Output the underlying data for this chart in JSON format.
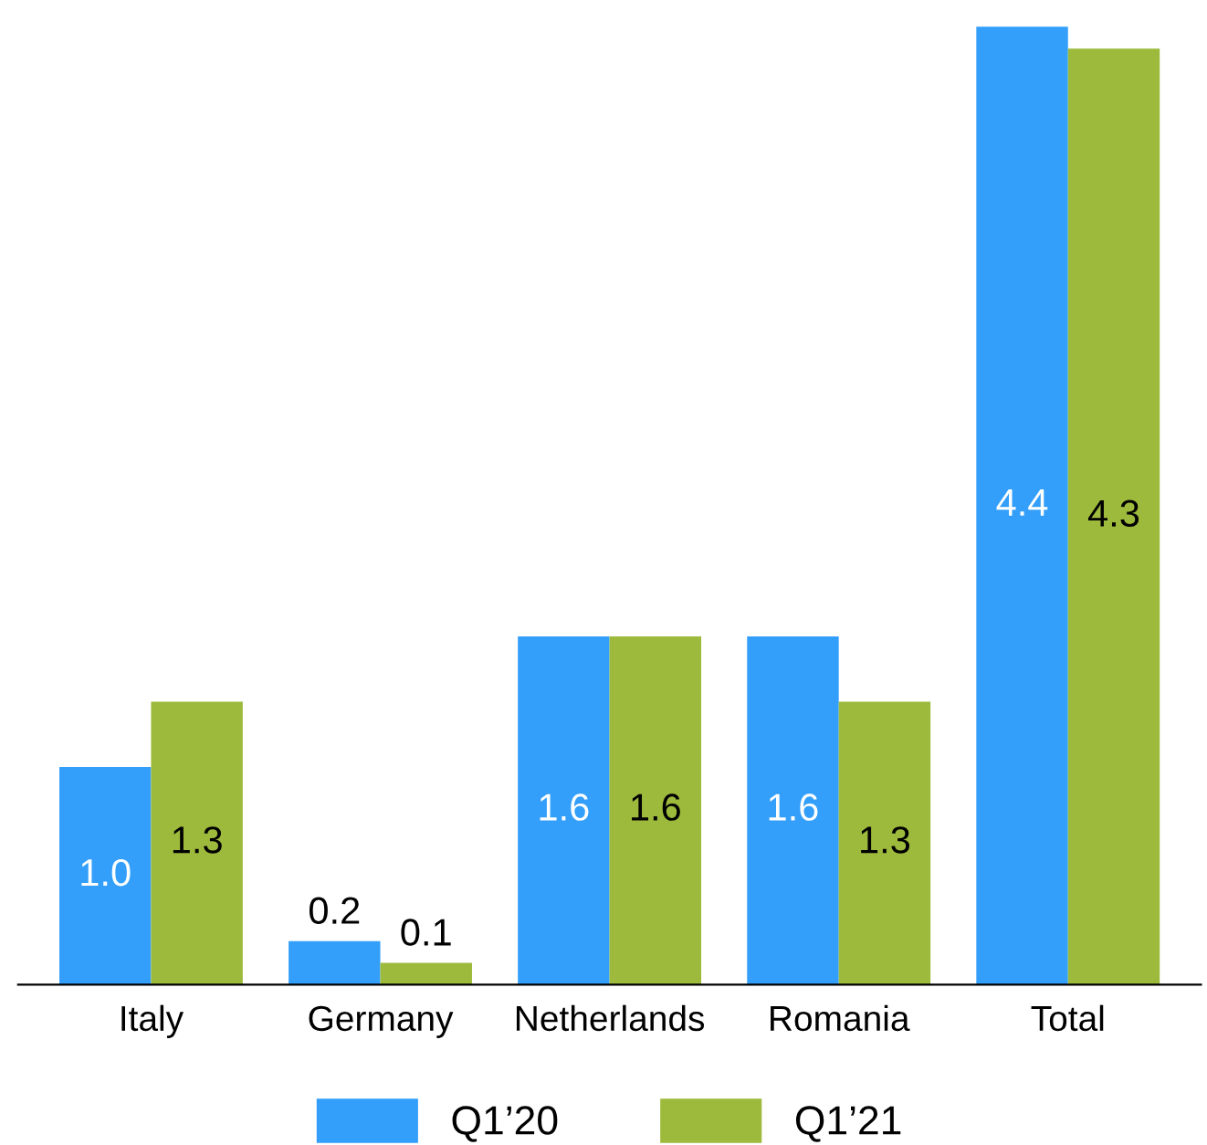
{
  "chart_data": {
    "type": "bar",
    "categories": [
      "Italy",
      "Germany",
      "Netherlands",
      "Romania",
      "Total"
    ],
    "series": [
      {
        "name": "Q1’20",
        "color": "#339ffa",
        "values": [
          1.0,
          0.2,
          1.6,
          1.6,
          4.4
        ],
        "value_labels": [
          "1.0",
          "0.2",
          "1.6",
          "1.6",
          "4.4"
        ]
      },
      {
        "name": "Q1’21",
        "color": "#9dba3c",
        "values": [
          1.3,
          0.1,
          1.6,
          1.3,
          4.3
        ],
        "value_labels": [
          "1.3",
          "0.1",
          "1.6",
          "1.3",
          "4.3"
        ]
      }
    ],
    "legend": "bottom",
    "grid": false
  }
}
